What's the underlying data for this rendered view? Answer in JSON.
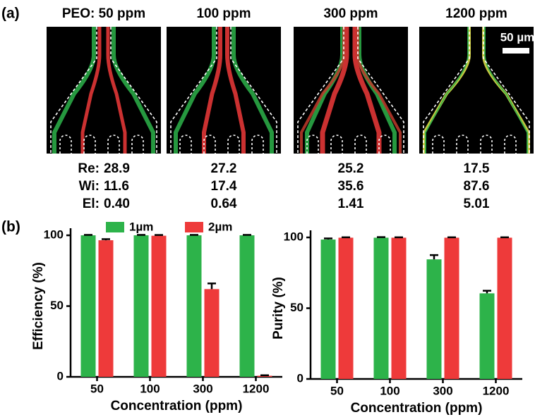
{
  "panel_a": {
    "label": "(a)",
    "scale_bar": "50 µm",
    "titles": [
      "PEO: 50 ppm",
      "100 ppm",
      "300 ppm",
      "1200 ppm"
    ],
    "row_labels": [
      "Re:",
      "Wi:",
      "El:"
    ],
    "rows": [
      [
        "28.9",
        "27.2",
        "25.2",
        "17.5"
      ],
      [
        "11.6",
        "17.4",
        "35.6",
        "87.6"
      ],
      [
        "0.40",
        "0.64",
        "1.41",
        "5.01"
      ]
    ]
  },
  "panel_b": {
    "label": "(b)"
  },
  "chart_data": [
    {
      "type": "bar",
      "ylabel": "Efficiency (%)",
      "xlabel": "Concentration (ppm)",
      "categories": [
        "50",
        "100",
        "300",
        "1200"
      ],
      "ylim": [
        0,
        105
      ],
      "yticks": [
        0,
        50,
        100
      ],
      "series": [
        {
          "name": "1µm",
          "color": "#2db34a",
          "values": [
            100,
            100,
            100,
            100
          ],
          "errors": [
            0.3,
            0.3,
            0.3,
            0.3
          ]
        },
        {
          "name": "2µm",
          "color": "#ee3a3a",
          "values": [
            96.5,
            99.7,
            62,
            0.8
          ],
          "errors": [
            0.8,
            0.5,
            4,
            0.3
          ]
        }
      ]
    },
    {
      "type": "bar",
      "ylabel": "Purity (%)",
      "xlabel": "Concentration (ppm)",
      "categories": [
        "50",
        "100",
        "300",
        "1200"
      ],
      "ylim": [
        0,
        105
      ],
      "yticks": [
        0,
        50,
        100
      ],
      "series": [
        {
          "color": "#2db34a",
          "values": [
            98.5,
            99.8,
            84.5,
            60.5
          ],
          "errors": [
            0.8,
            0.4,
            3,
            1.8
          ]
        },
        {
          "color": "#ee3a3a",
          "values": [
            99.8,
            99.8,
            99.8,
            99.8
          ],
          "errors": [
            0.3,
            0.3,
            0.3,
            0.3
          ]
        }
      ]
    }
  ]
}
